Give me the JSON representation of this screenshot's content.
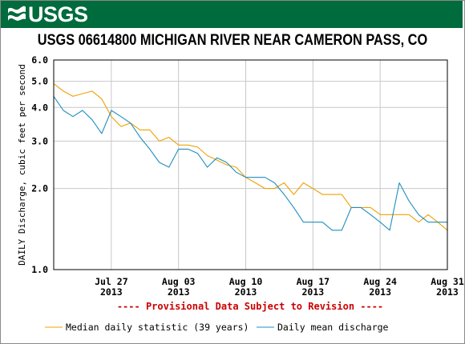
{
  "header": {
    "logo_text": "USGS",
    "logo_icon": "usgs-wave-icon"
  },
  "colors": {
    "banner": "#006b3c",
    "median": "#f0a000",
    "mean": "#1f8fbf",
    "provisional": "#cc0000",
    "grid": "#c8c8c8"
  },
  "chart_data": {
    "type": "line",
    "title": "USGS 06614800 MICHIGAN RIVER NEAR CAMERON PASS, CO",
    "ylabel": "DAILY Discharge, cubic feet per second",
    "xlabel": "",
    "y_scale": "log",
    "ylim": [
      1.0,
      6.0
    ],
    "y_ticks": [
      {
        "value": 1.0,
        "label": "1.0"
      },
      {
        "value": 2.0,
        "label": "2.0"
      },
      {
        "value": 3.0,
        "label": "3.0"
      },
      {
        "value": 4.0,
        "label": "4.0"
      },
      {
        "value": 5.0,
        "label": "5.0"
      },
      {
        "value": 6.0,
        "label": "6.0"
      }
    ],
    "xlim": [
      "2013-07-21",
      "2013-08-31"
    ],
    "x_ticks": [
      {
        "date": "2013-07-27",
        "label": "Jul 27",
        "year": "2013"
      },
      {
        "date": "2013-08-03",
        "label": "Aug 03",
        "year": "2013"
      },
      {
        "date": "2013-08-10",
        "label": "Aug 10",
        "year": "2013"
      },
      {
        "date": "2013-08-17",
        "label": "Aug 17",
        "year": "2013"
      },
      {
        "date": "2013-08-24",
        "label": "Aug 24",
        "year": "2013"
      },
      {
        "date": "2013-08-31",
        "label": "Aug 31",
        "year": "2013"
      }
    ],
    "grid": true,
    "dates": [
      "2013-07-21",
      "2013-07-22",
      "2013-07-23",
      "2013-07-24",
      "2013-07-25",
      "2013-07-26",
      "2013-07-27",
      "2013-07-28",
      "2013-07-29",
      "2013-07-30",
      "2013-07-31",
      "2013-08-01",
      "2013-08-02",
      "2013-08-03",
      "2013-08-04",
      "2013-08-05",
      "2013-08-06",
      "2013-08-07",
      "2013-08-08",
      "2013-08-09",
      "2013-08-10",
      "2013-08-11",
      "2013-08-12",
      "2013-08-13",
      "2013-08-14",
      "2013-08-15",
      "2013-08-16",
      "2013-08-17",
      "2013-08-18",
      "2013-08-19",
      "2013-08-20",
      "2013-08-21",
      "2013-08-22",
      "2013-08-23",
      "2013-08-24",
      "2013-08-25",
      "2013-08-26",
      "2013-08-27",
      "2013-08-28",
      "2013-08-29",
      "2013-08-30",
      "2013-08-31"
    ],
    "series": [
      {
        "name": "Median daily statistic (39 years)",
        "values": [
          4.9,
          4.6,
          4.4,
          4.5,
          4.6,
          4.3,
          3.7,
          3.4,
          3.5,
          3.3,
          3.3,
          3.0,
          3.1,
          2.9,
          2.9,
          2.85,
          2.65,
          2.55,
          2.45,
          2.4,
          2.2,
          2.1,
          2.0,
          2.0,
          2.1,
          1.9,
          2.1,
          2.0,
          1.9,
          1.9,
          1.9,
          1.7,
          1.7,
          1.7,
          1.6,
          1.6,
          1.6,
          1.6,
          1.5,
          1.6,
          1.5,
          1.4
        ],
        "color": "#f0a000"
      },
      {
        "name": "Daily mean discharge",
        "values": [
          4.4,
          3.9,
          3.7,
          3.9,
          3.6,
          3.2,
          3.9,
          3.7,
          3.5,
          3.1,
          2.8,
          2.5,
          2.4,
          2.8,
          2.8,
          2.7,
          2.4,
          2.6,
          2.5,
          2.3,
          2.2,
          2.2,
          2.2,
          2.1,
          1.9,
          1.7,
          1.5,
          1.5,
          1.5,
          1.4,
          1.4,
          1.7,
          1.7,
          1.6,
          1.5,
          1.4,
          2.1,
          1.8,
          1.6,
          1.5,
          1.5,
          1.5
        ],
        "color": "#1f8fbf"
      }
    ],
    "annotation": "---- Provisional Data Subject to Revision ----",
    "legend_position": "bottom"
  }
}
